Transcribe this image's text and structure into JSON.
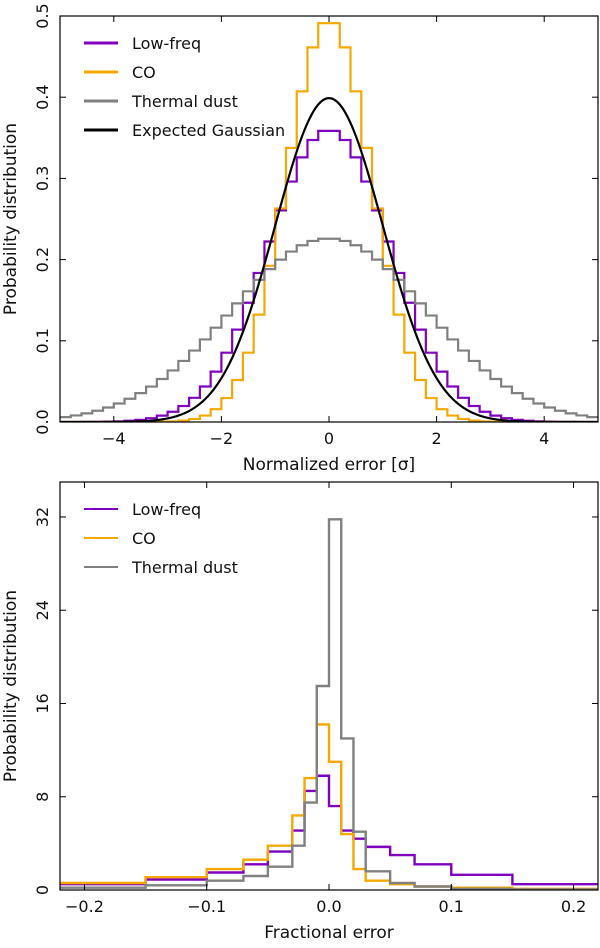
{
  "colors": {
    "lowfreq": "#7f00bf",
    "co": "#f5a800",
    "dust": "#808080",
    "gauss": "#000000"
  },
  "chart_data": [
    {
      "type": "line",
      "name": "top-panel",
      "xlabel": "Normalized error [σ]",
      "ylabel": "Probability distribution",
      "xlim": [
        -5,
        5
      ],
      "ylim": [
        0,
        0.5
      ],
      "xticks": [
        -4,
        -2,
        0,
        2,
        4
      ],
      "xtick_labels": [
        "−4",
        "−2",
        "0",
        "2",
        "4"
      ],
      "yticks": [
        0.0,
        0.1,
        0.2,
        0.3,
        0.4,
        0.5
      ],
      "ytick_labels": [
        "0.0",
        "0.1",
        "0.2",
        "0.3",
        "0.4",
        "0.5"
      ],
      "legend": "top-left",
      "series": [
        {
          "name": "Low-freq",
          "color_key": "lowfreq",
          "style": "step",
          "model": "gauss",
          "amp": 0.36,
          "sigma": 1.12,
          "step": 0.2,
          "range": [
            -5,
            5
          ]
        },
        {
          "name": "CO",
          "color_key": "co",
          "style": "step",
          "model": "gauss",
          "amp": 0.495,
          "sigma": 0.8,
          "step": 0.2,
          "range": [
            -5,
            5
          ]
        },
        {
          "name": "Thermal dust",
          "color_key": "dust",
          "style": "step",
          "model": "gauss",
          "amp": 0.226,
          "sigma": 1.82,
          "step": 0.2,
          "range": [
            -5,
            5
          ]
        },
        {
          "name": "Expected Gaussian",
          "color_key": "gauss",
          "style": "line",
          "model": "gauss",
          "amp": 0.3989,
          "sigma": 1.0,
          "step": 0.05,
          "range": [
            -5,
            5
          ]
        }
      ]
    },
    {
      "type": "line",
      "name": "bottom-panel",
      "xlabel": "Fractional error",
      "ylabel": "Probability distribution",
      "xlim": [
        -0.22,
        0.22
      ],
      "ylim": [
        0,
        35
      ],
      "xticks": [
        -0.2,
        -0.1,
        0.0,
        0.1,
        0.2
      ],
      "xtick_labels": [
        "−0.2",
        "−0.1",
        "0.0",
        "0.1",
        "0.2"
      ],
      "yticks": [
        0,
        8,
        16,
        24,
        32
      ],
      "ytick_labels": [
        "0",
        "8",
        "16",
        "24",
        "32"
      ],
      "legend": "top-left",
      "series": [
        {
          "name": "Low-freq",
          "color_key": "lowfreq",
          "style": "step",
          "model": "hist",
          "edges": [
            -0.25,
            -0.15,
            -0.1,
            -0.07,
            -0.05,
            -0.03,
            -0.02,
            -0.01,
            0.0,
            0.01,
            0.02,
            0.03,
            0.05,
            0.07,
            0.1,
            0.15,
            0.25
          ],
          "heights": [
            0.5,
            0.9,
            1.5,
            2.2,
            3.3,
            5.1,
            8.5,
            9.8,
            7.2,
            5.1,
            4.4,
            3.7,
            3.0,
            2.2,
            1.3,
            0.5
          ]
        },
        {
          "name": "CO",
          "color_key": "co",
          "style": "step",
          "model": "hist",
          "edges": [
            -0.25,
            -0.15,
            -0.1,
            -0.07,
            -0.05,
            -0.03,
            -0.02,
            -0.01,
            0.0,
            0.01,
            0.02,
            0.03,
            0.05,
            0.07,
            0.1,
            0.15,
            0.25
          ],
          "heights": [
            0.6,
            1.1,
            1.8,
            2.6,
            3.8,
            6.4,
            9.6,
            14.2,
            11.0,
            4.8,
            1.8,
            0.8,
            0.5,
            0.3,
            0.2,
            0.1
          ]
        },
        {
          "name": "Thermal dust",
          "color_key": "dust",
          "style": "step",
          "model": "hist",
          "edges": [
            -0.25,
            -0.15,
            -0.1,
            -0.07,
            -0.05,
            -0.03,
            -0.02,
            -0.01,
            0.0,
            0.01,
            0.02,
            0.03,
            0.05,
            0.07,
            0.1,
            0.15,
            0.25
          ],
          "heights": [
            0.2,
            0.4,
            0.8,
            1.2,
            2.0,
            3.8,
            7.5,
            17.5,
            31.8,
            13.0,
            5.0,
            1.6,
            0.6,
            0.3,
            0.1,
            0.05
          ]
        }
      ]
    }
  ]
}
